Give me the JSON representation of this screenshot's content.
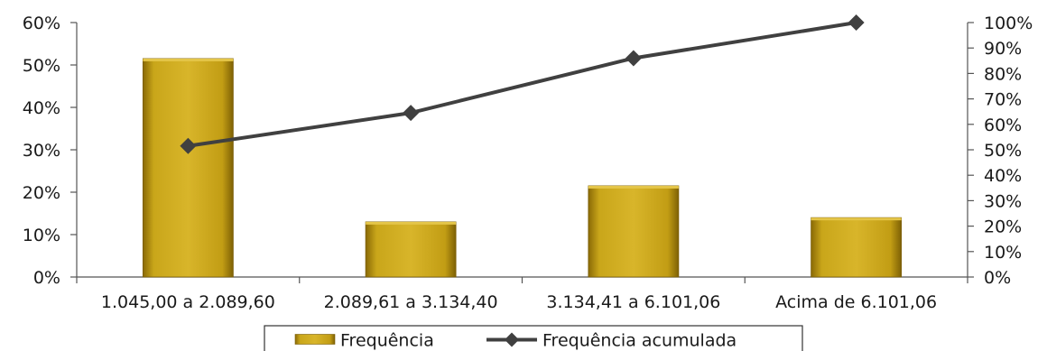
{
  "chart_data": {
    "type": "bar",
    "title": "",
    "xlabel": "",
    "ylabel": "",
    "categories": [
      "1.045,00 a 2.089,60",
      "2.089,61 a 3.134,40",
      "3.134,41 a 6.101,06",
      "Acima de 6.101,06"
    ],
    "series": [
      {
        "name": "Frequência",
        "type": "bar",
        "axis": "left",
        "color": "#c8a218",
        "values": [
          51.5,
          13,
          21.5,
          14
        ]
      },
      {
        "name": "Frequência acumulada",
        "type": "line",
        "axis": "right",
        "color": "#404040",
        "marker": "diamond",
        "values": [
          51.5,
          64.5,
          86,
          100
        ]
      }
    ],
    "ylim": [
      0,
      60
    ],
    "y_ticks": [
      "0%",
      "10%",
      "20%",
      "30%",
      "40%",
      "50%",
      "60%"
    ],
    "y_tick_values": [
      0,
      10,
      20,
      30,
      40,
      50,
      60
    ],
    "y2lim": [
      0,
      100
    ],
    "y2_ticks": [
      "0%",
      "10%",
      "20%",
      "30%",
      "40%",
      "50%",
      "60%",
      "70%",
      "80%",
      "90%",
      "100%"
    ],
    "y2_tick_values": [
      0,
      10,
      20,
      30,
      40,
      50,
      60,
      70,
      80,
      90,
      100
    ],
    "grid": false,
    "legend_position": "bottom"
  }
}
